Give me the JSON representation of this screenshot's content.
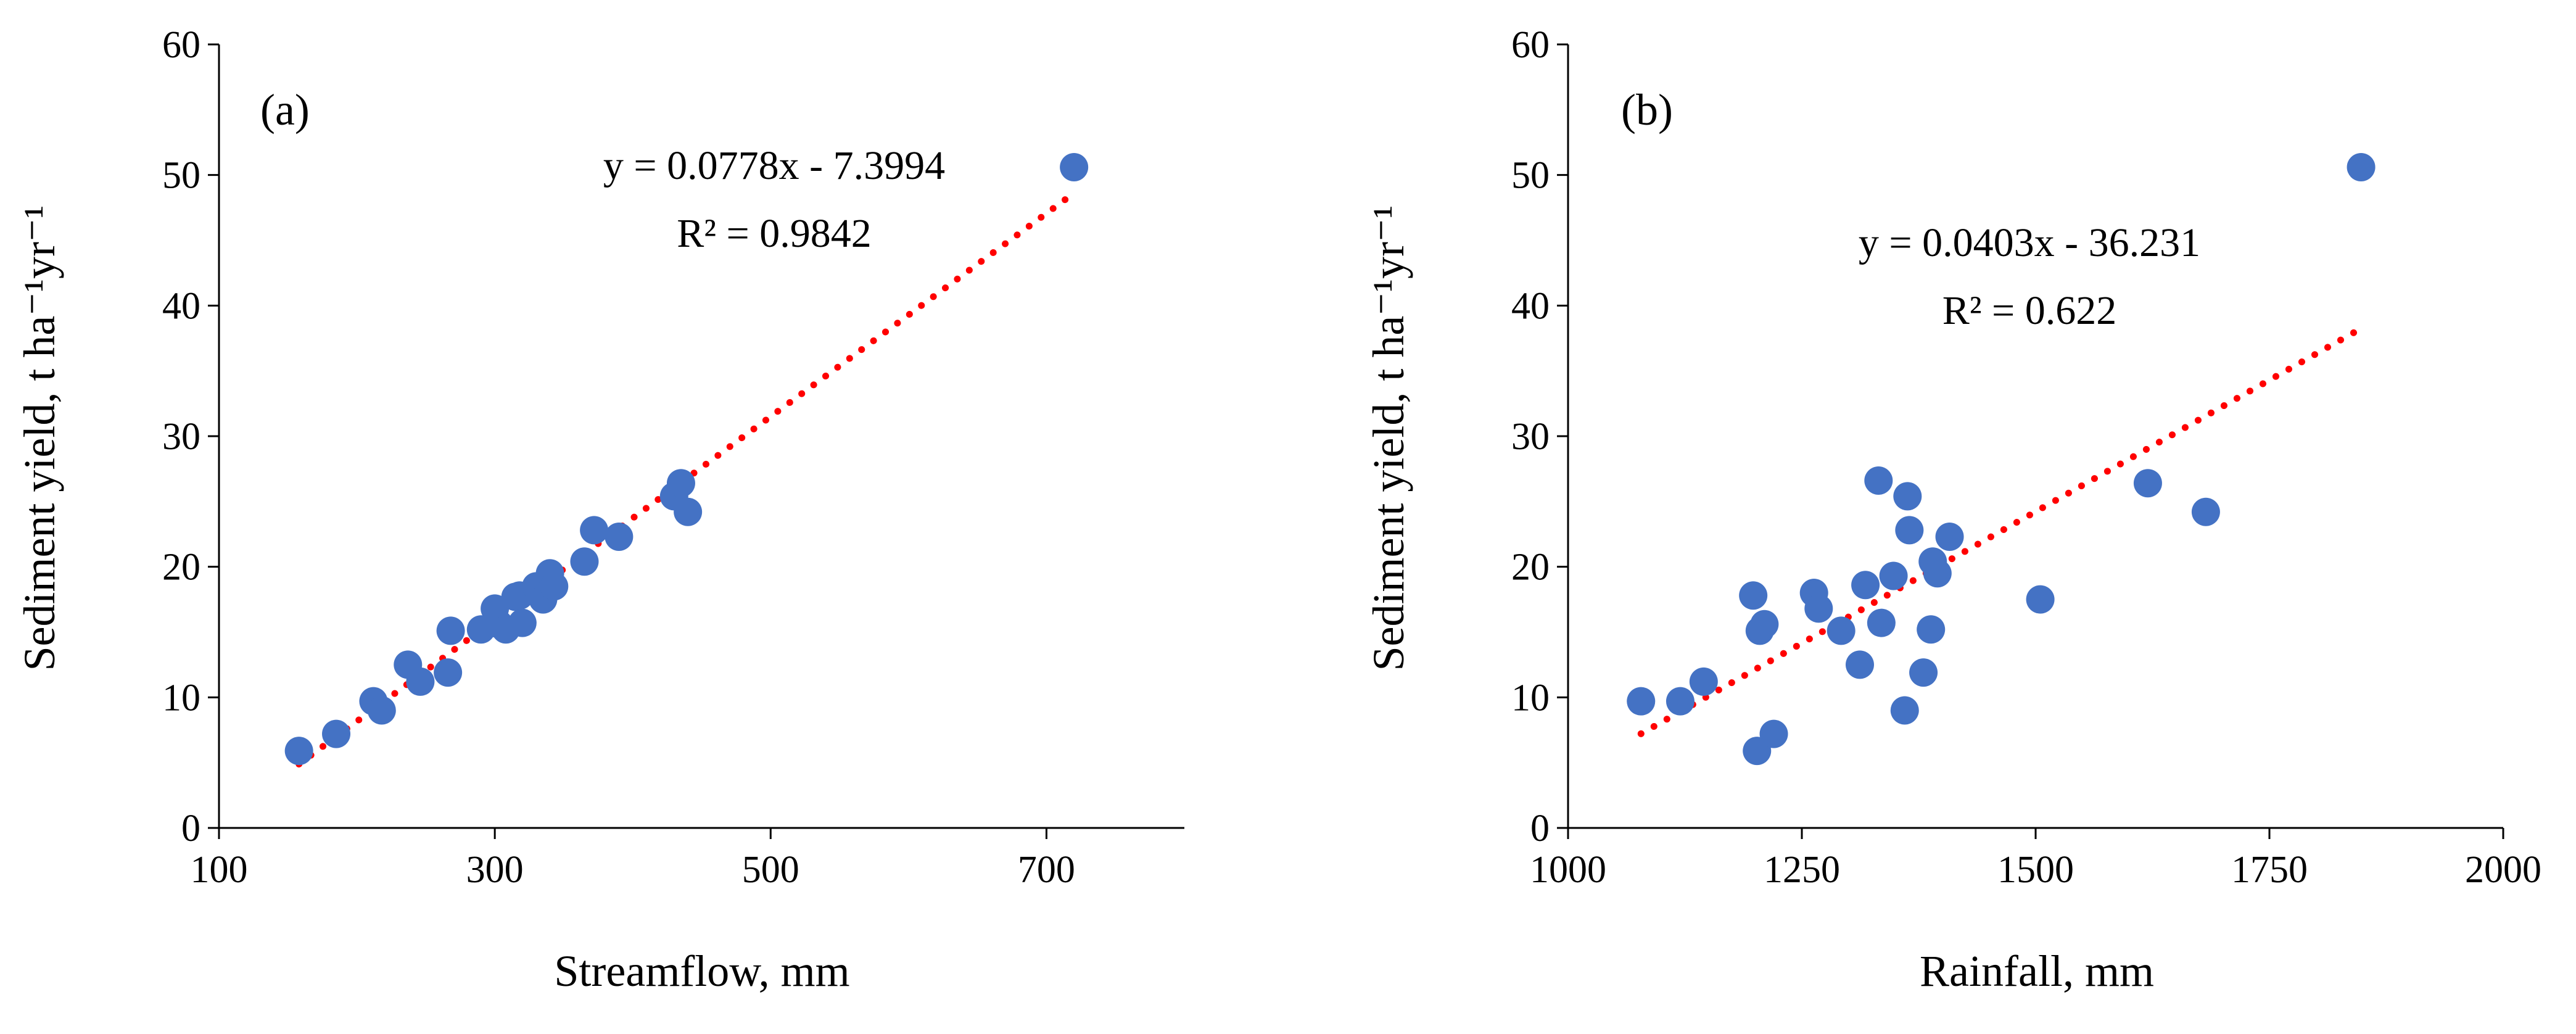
{
  "chart_data": [
    {
      "type": "scatter",
      "panel_label": "(a)",
      "xlabel": "Streamflow, mm",
      "ylabel": "Sediment yield, t ha⁻¹yr⁻¹",
      "xlim": [
        100,
        800
      ],
      "ylim": [
        0,
        60
      ],
      "xticks": [
        100,
        300,
        500,
        700
      ],
      "xtick_labels": [
        "100",
        "300",
        "500",
        "700"
      ],
      "yticks": [
        0,
        10,
        20,
        30,
        40,
        50,
        60
      ],
      "ytick_labels": [
        "0",
        "10",
        "20",
        "30",
        "40",
        "50",
        "60"
      ],
      "grid": false,
      "legend": "none",
      "marker_color": "#4472C4",
      "trend_color": "#FF0000",
      "trendline": {
        "slope": 0.0778,
        "intercept": -7.3994,
        "x_range": [
          158,
          720
        ],
        "style": "dotted"
      },
      "annotations": [
        "y = 0.0778x - 7.3994",
        "R² = 0.9842"
      ],
      "points": {
        "x": [
          158,
          185,
          212,
          218,
          237,
          246,
          266,
          268,
          290,
          300,
          303,
          308,
          315,
          318,
          320,
          330,
          335,
          340,
          343,
          365,
          372,
          390,
          430,
          435,
          440,
          720
        ],
        "y": [
          5.9,
          7.2,
          9.7,
          9.0,
          12.5,
          11.2,
          11.9,
          15.1,
          15.2,
          16.8,
          15.6,
          15.2,
          17.7,
          17.8,
          15.7,
          18.5,
          17.5,
          19.5,
          18.5,
          20.4,
          22.8,
          22.3,
          25.4,
          26.4,
          24.2,
          50.6
        ]
      }
    },
    {
      "type": "scatter",
      "panel_label": "(b)",
      "xlabel": "Rainfall, mm",
      "ylabel": "Sediment yield, t ha⁻¹yr⁻¹",
      "xlim": [
        1000,
        2000
      ],
      "ylim": [
        0,
        60
      ],
      "xticks": [
        1000,
        1250,
        1500,
        1750,
        2000
      ],
      "xtick_labels": [
        "1000",
        "1250",
        "1500",
        "1750",
        "2000"
      ],
      "yticks": [
        0,
        10,
        20,
        30,
        40,
        50,
        60
      ],
      "ytick_labels": [
        "0",
        "10",
        "20",
        "30",
        "40",
        "50",
        "60"
      ],
      "grid": false,
      "legend": "none",
      "marker_color": "#4472C4",
      "trend_color": "#FF0000",
      "trendline": {
        "slope": 0.0403,
        "intercept": -36.231,
        "x_range": [
          1078,
          1845
        ],
        "style": "dotted"
      },
      "annotations": [
        "y = 0.0403x - 36.231",
        "R² = 0.622"
      ],
      "points": {
        "x": [
          1078,
          1120,
          1145,
          1198,
          1202,
          1205,
          1210,
          1220,
          1263,
          1268,
          1292,
          1312,
          1318,
          1332,
          1335,
          1348,
          1360,
          1363,
          1365,
          1380,
          1388,
          1390,
          1395,
          1408,
          1505,
          1620,
          1682,
          1848
        ],
        "y": [
          9.7,
          9.7,
          11.2,
          17.8,
          5.9,
          15.1,
          15.6,
          7.2,
          18.0,
          16.8,
          15.1,
          12.5,
          18.6,
          26.6,
          15.7,
          19.3,
          9.0,
          25.4,
          22.8,
          11.9,
          15.2,
          20.4,
          19.5,
          22.3,
          17.5,
          26.4,
          24.2,
          50.6
        ]
      }
    }
  ]
}
